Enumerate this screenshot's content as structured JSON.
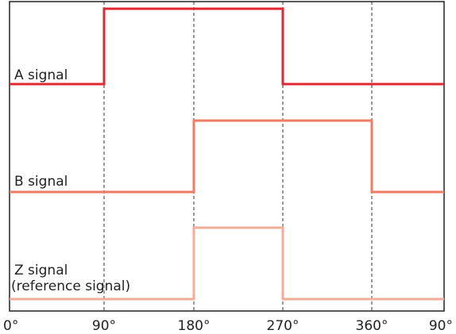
{
  "diagram": {
    "x_labels": [
      "0°",
      "90°",
      "180°",
      "270°",
      "360°",
      "90°"
    ],
    "signals": [
      {
        "label_lines": [
          "A signal"
        ],
        "color": "#e02630",
        "transitions_deg": [
          90,
          270
        ],
        "start_level": "low"
      },
      {
        "label_lines": [
          "B signal"
        ],
        "color": "#ef7c62",
        "transitions_deg": [
          180,
          360
        ],
        "start_level": "low"
      },
      {
        "label_lines": [
          "Z signal",
          "(reference signal)"
        ],
        "color": "#f6ab98",
        "transitions_deg": [
          180,
          270
        ],
        "start_level": "low"
      }
    ],
    "colors": {
      "frame": "#222222",
      "gridline": "#333333"
    }
  }
}
